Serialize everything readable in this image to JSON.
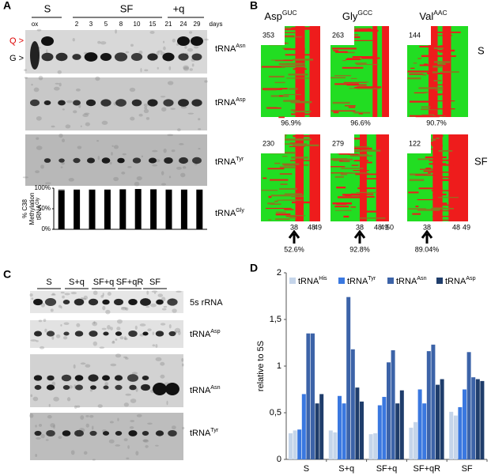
{
  "panel_labels": [
    "A",
    "B",
    "C",
    "D"
  ],
  "panel_a": {
    "groups": [
      "S",
      "SF",
      "+q"
    ],
    "lanes": [
      "ox",
      "2",
      "3",
      "5",
      "8",
      "10",
      "15",
      "21",
      "24",
      "29",
      "days"
    ],
    "bands": [
      "Q >",
      "G >"
    ],
    "blots": [
      {
        "name": "tRNA",
        "sup": "Asn"
      },
      {
        "name": "tRNA",
        "sup": "Asp"
      },
      {
        "name": "tRNA",
        "sup": "Tyr"
      }
    ]
  },
  "panel_b": {
    "columns": [
      {
        "name": "Asp",
        "sup": "GUC"
      },
      {
        "name": "Gly",
        "sup": "GCC"
      },
      {
        "name": "Val",
        "sup": "AAC"
      }
    ],
    "rows": [
      "S",
      "SF"
    ],
    "counts": [
      [
        353,
        263,
        144
      ],
      [
        230,
        279,
        122
      ]
    ],
    "percents": [
      "96.9%",
      "96.6%",
      "90.7%"
    ],
    "positions": [
      [
        "38",
        "48",
        "49"
      ],
      [
        "38",
        "48",
        "49",
        "50"
      ],
      [
        "38",
        "48",
        "49"
      ]
    ],
    "arrow_percents": [
      "52.6%",
      "92.8%",
      "89.04%"
    ]
  },
  "panel_c": {
    "lanes": [
      "S",
      "S+q",
      "SF+q",
      "SF+qR",
      "SF"
    ],
    "blots": [
      {
        "name": "5s rRNA",
        "sup": ""
      },
      {
        "name": "tRNA",
        "sup": "Asp"
      },
      {
        "name": "tRNA",
        "sup": "Asn"
      },
      {
        "name": "tRNA",
        "sup": "Tyr"
      }
    ]
  },
  "chart_data": [
    {
      "type": "bar",
      "ylabel": [
        "% C38",
        "Methylation",
        "tRNA"
      ],
      "ylabel_sup": "Gly",
      "label": {
        "name": "tRNA",
        "sup": "Gly"
      },
      "categories": [
        null,
        null,
        null,
        null,
        null,
        null,
        null,
        null,
        null,
        null
      ],
      "values": [
        95,
        96,
        96,
        96,
        97,
        98,
        97,
        96,
        96,
        96
      ],
      "color": "#000000",
      "ylim": [
        0,
        100
      ],
      "yticks": [
        {
          "value": 0,
          "label": "0%"
        },
        {
          "value": 50,
          "label": "50%"
        },
        {
          "value": 100,
          "label": "100%"
        }
      ]
    },
    {
      "type": "grouped-bar",
      "ylabel": "relative to 5S",
      "categories": [
        "S",
        "S+q",
        "SF+q",
        "SF+qR",
        "SF"
      ],
      "series": [
        {
          "name": "tRNA",
          "sup": "His",
          "color": "#c5d5ea",
          "values": [
            [
              0.28,
              0.31
            ],
            [
              0.31,
              0.29
            ],
            [
              0.27,
              0.28
            ],
            [
              0.34,
              0.4
            ],
            [
              0.51,
              0.47
            ]
          ]
        },
        {
          "name": "tRNA",
          "sup": "Tyr",
          "color": "#3a78e0",
          "values": [
            [
              0.32,
              0.7
            ],
            [
              0.68,
              0.6
            ],
            [
              0.58,
              0.67
            ],
            [
              0.75,
              0.6
            ],
            [
              0.56,
              0.75
            ]
          ]
        },
        {
          "name": "tRNA",
          "sup": "Asn",
          "color": "#3c63a8",
          "values": [
            [
              1.35,
              1.35
            ],
            [
              1.74,
              1.18
            ],
            [
              1.04,
              1.17
            ],
            [
              1.16,
              1.23
            ],
            [
              1.15,
              0.88
            ]
          ]
        },
        {
          "name": "tRNA",
          "sup": "Asp",
          "color": "#1f3d6b",
          "values": [
            [
              0.6,
              0.7
            ],
            [
              0.77,
              0.62
            ],
            [
              0.6,
              0.74
            ],
            [
              0.8,
              0.86
            ],
            [
              0.86,
              0.84
            ]
          ]
        }
      ],
      "ylim": [
        0,
        2
      ],
      "yticks": [
        0,
        {
          "value": 0.5,
          "label": "0,5"
        },
        1,
        {
          "value": 1.5,
          "label": "1,5"
        },
        2
      ]
    }
  ]
}
